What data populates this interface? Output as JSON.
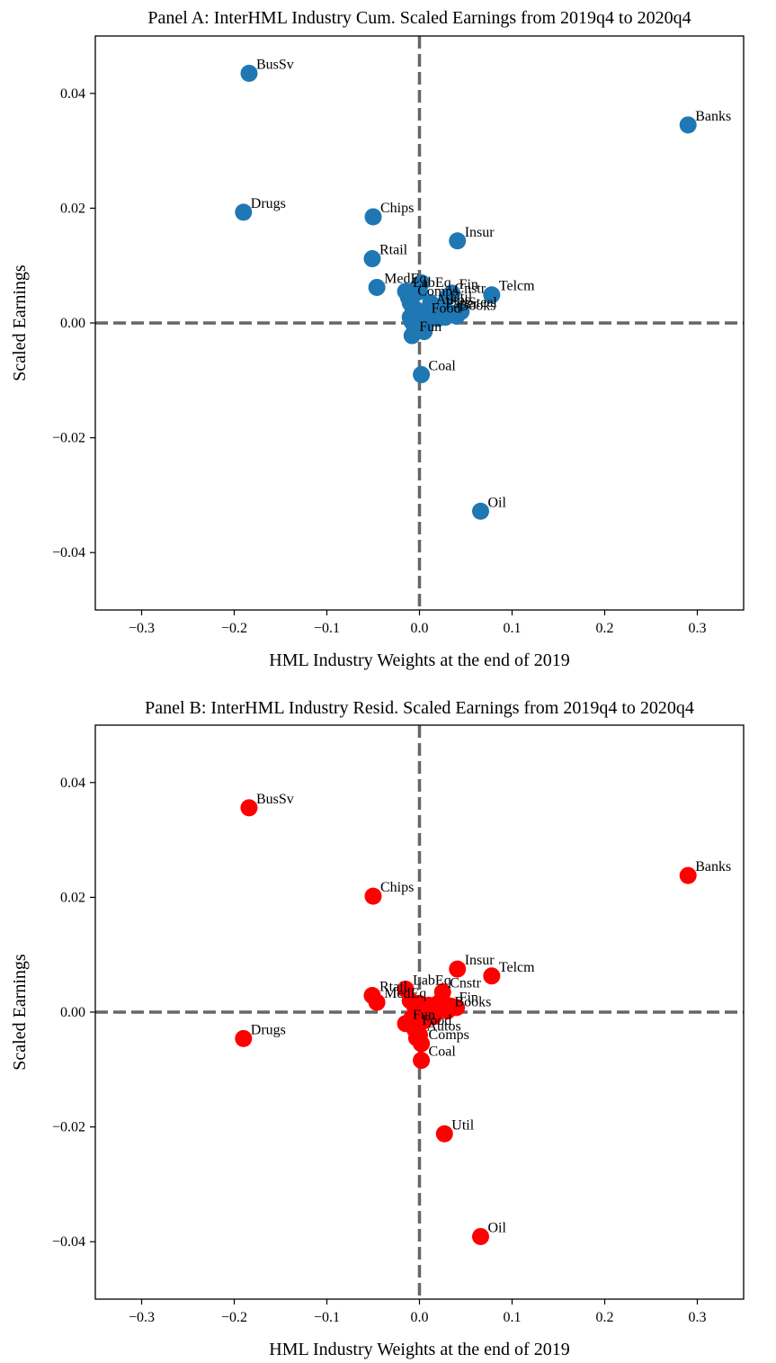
{
  "chart_data": [
    {
      "type": "scatter",
      "title": "Panel A: InterHML Industry Cum. Scaled Earnings from 2019q4 to 2020q4",
      "xlabel": "HML Industry Weights at the end of 2019",
      "ylabel": "Scaled Earnings",
      "xlim": [
        -0.35,
        0.35
      ],
      "ylim": [
        -0.05,
        0.05
      ],
      "xticks": [
        -0.3,
        -0.2,
        -0.1,
        0.0,
        0.1,
        0.2,
        0.3
      ],
      "xtick_labels": [
        "−0.3",
        "−0.2",
        "−0.1",
        "0.0",
        "0.1",
        "0.2",
        "0.3"
      ],
      "yticks": [
        0.04,
        0.02,
        0.0,
        -0.02,
        -0.04
      ],
      "ytick_labels": [
        "0.04",
        "0.02",
        "0.00",
        "−0.02",
        "−0.04"
      ],
      "grid": false,
      "reference_lines": {
        "x": 0,
        "y": 0,
        "style": "dashed",
        "color": "#666666"
      },
      "color": "#1f77b4",
      "points": [
        {
          "label": "BusSv",
          "x": -0.184,
          "y": 0.0435
        },
        {
          "label": "Banks",
          "x": 0.29,
          "y": 0.0345
        },
        {
          "label": "Drugs",
          "x": -0.19,
          "y": 0.0193
        },
        {
          "label": "Chips",
          "x": -0.05,
          "y": 0.0185
        },
        {
          "label": "Insur",
          "x": 0.041,
          "y": 0.0143
        },
        {
          "label": "Rtail",
          "x": -0.051,
          "y": 0.0112
        },
        {
          "label": "MedEq",
          "x": -0.046,
          "y": 0.0062
        },
        {
          "label": "LabEq",
          "x": -0.015,
          "y": 0.0055
        },
        {
          "label": "Fin",
          "x": 0.035,
          "y": 0.0052
        },
        {
          "label": "Telcm",
          "x": 0.078,
          "y": 0.0049
        },
        {
          "label": "Cnstr",
          "x": 0.03,
          "y": 0.0045
        },
        {
          "label": "Books",
          "x": 0.035,
          "y": 0.0015
        },
        {
          "label": "Steel",
          "x": 0.045,
          "y": 0.002
        },
        {
          "label": "Paper",
          "x": 0.02,
          "y": 0.0018
        },
        {
          "label": "Autos",
          "x": 0.01,
          "y": 0.0025
        },
        {
          "label": "Util",
          "x": 0.025,
          "y": 0.003
        },
        {
          "label": "Food",
          "x": 0.005,
          "y": 0.001
        },
        {
          "label": "Comps",
          "x": -0.01,
          "y": 0.004
        },
        {
          "label": "Fun",
          "x": -0.008,
          "y": -0.0022
        },
        {
          "label": "Coal",
          "x": 0.002,
          "y": -0.009
        },
        {
          "label": "Oil",
          "x": 0.066,
          "y": -0.0328
        }
      ],
      "extra_points": [
        [
          -0.012,
          0.0045
        ],
        [
          -0.01,
          0.0035
        ],
        [
          -0.008,
          0.003
        ],
        [
          -0.005,
          0.0025
        ],
        [
          -0.01,
          0.001
        ],
        [
          -0.008,
          0.0002
        ],
        [
          -0.005,
          -0.0008
        ],
        [
          0.0,
          -0.001
        ],
        [
          0.005,
          -0.0015
        ],
        [
          0.01,
          0.0005
        ],
        [
          0.015,
          0.0012
        ],
        [
          0.02,
          0.0008
        ],
        [
          0.028,
          0.001
        ],
        [
          0.03,
          0.002
        ],
        [
          0.04,
          0.0012
        ],
        [
          0.0,
          0.0055
        ],
        [
          0.002,
          0.007
        ],
        [
          -0.002,
          0.0062
        ],
        [
          0.012,
          0.0035
        ]
      ]
    },
    {
      "type": "scatter",
      "title": "Panel B: InterHML Industry Resid. Scaled Earnings from 2019q4 to 2020q4",
      "xlabel": "HML Industry Weights at the end of 2019",
      "ylabel": "Scaled Earnings",
      "xlim": [
        -0.35,
        0.35
      ],
      "ylim": [
        -0.05,
        0.05
      ],
      "xticks": [
        -0.3,
        -0.2,
        -0.1,
        0.0,
        0.1,
        0.2,
        0.3
      ],
      "xtick_labels": [
        "−0.3",
        "−0.2",
        "−0.1",
        "0.0",
        "0.1",
        "0.2",
        "0.3"
      ],
      "yticks": [
        0.04,
        0.02,
        0.0,
        -0.02,
        -0.04
      ],
      "ytick_labels": [
        "0.04",
        "0.02",
        "0.00",
        "−0.02",
        "−0.04"
      ],
      "grid": false,
      "reference_lines": {
        "x": 0,
        "y": 0,
        "style": "dashed",
        "color": "#666666"
      },
      "color": "#ff0000",
      "points": [
        {
          "label": "BusSv",
          "x": -0.184,
          "y": 0.0356
        },
        {
          "label": "Banks",
          "x": 0.29,
          "y": 0.0238
        },
        {
          "label": "Chips",
          "x": -0.05,
          "y": 0.0202
        },
        {
          "label": "Insur",
          "x": 0.041,
          "y": 0.0075
        },
        {
          "label": "Telcm",
          "x": 0.078,
          "y": 0.0063
        },
        {
          "label": "LabEq",
          "x": -0.015,
          "y": 0.004
        },
        {
          "label": "Cnstr",
          "x": 0.025,
          "y": 0.0035
        },
        {
          "label": "Rtail",
          "x": -0.051,
          "y": 0.0029
        },
        {
          "label": "MedEq",
          "x": -0.046,
          "y": 0.0017
        },
        {
          "label": "Fin",
          "x": 0.035,
          "y": 0.001
        },
        {
          "label": "Books",
          "x": 0.03,
          "y": 0.0002
        },
        {
          "label": "Fun",
          "x": -0.015,
          "y": -0.002
        },
        {
          "label": "Food",
          "x": -0.005,
          "y": -0.003
        },
        {
          "label": "Autos",
          "x": 0.0,
          "y": -0.004
        },
        {
          "label": "Comps",
          "x": 0.002,
          "y": -0.0055
        },
        {
          "label": "Drugs",
          "x": -0.19,
          "y": -0.0046
        },
        {
          "label": "Coal",
          "x": 0.002,
          "y": -0.0084
        },
        {
          "label": "Util",
          "x": 0.027,
          "y": -0.0212
        },
        {
          "label": "Oil",
          "x": 0.066,
          "y": -0.0391
        }
      ],
      "extra_points": [
        [
          -0.01,
          0.002
        ],
        [
          -0.005,
          0.001
        ],
        [
          0.0,
          0.0015
        ],
        [
          0.005,
          0.0005
        ],
        [
          0.01,
          0.0012
        ],
        [
          0.015,
          0.0008
        ],
        [
          0.02,
          0.0015
        ],
        [
          0.025,
          0.0005
        ],
        [
          0.03,
          0.0012
        ],
        [
          0.04,
          0.0008
        ],
        [
          0.01,
          -0.0005
        ],
        [
          -0.008,
          -0.001
        ],
        [
          0.005,
          -0.0015
        ],
        [
          0.015,
          -0.0008
        ],
        [
          -0.003,
          -0.0045
        ]
      ]
    }
  ]
}
